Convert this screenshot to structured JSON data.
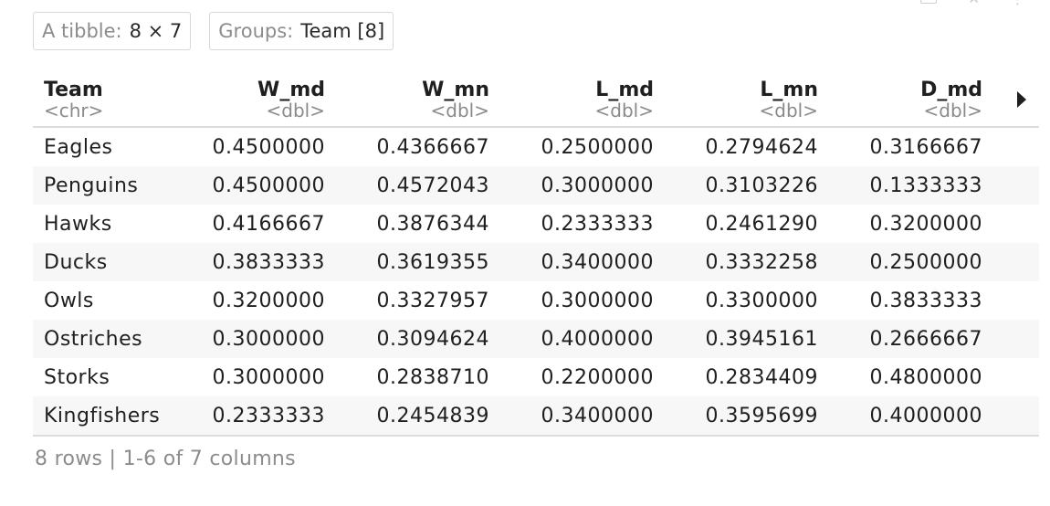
{
  "badges": {
    "tibble_key": "A tibble:",
    "tibble_value": "8 × 7",
    "groups_key": "Groups:",
    "groups_value": "Team [8]"
  },
  "columns": [
    {
      "name": "Team",
      "type": "<chr>"
    },
    {
      "name": "W_md",
      "type": "<dbl>"
    },
    {
      "name": "W_mn",
      "type": "<dbl>"
    },
    {
      "name": "L_md",
      "type": "<dbl>"
    },
    {
      "name": "L_mn",
      "type": "<dbl>"
    },
    {
      "name": "D_md",
      "type": "<dbl>"
    }
  ],
  "rows": [
    [
      "Eagles",
      "0.4500000",
      "0.4366667",
      "0.2500000",
      "0.2794624",
      "0.3166667"
    ],
    [
      "Penguins",
      "0.4500000",
      "0.4572043",
      "0.3000000",
      "0.3103226",
      "0.1333333"
    ],
    [
      "Hawks",
      "0.4166667",
      "0.3876344",
      "0.2333333",
      "0.2461290",
      "0.3200000"
    ],
    [
      "Ducks",
      "0.3833333",
      "0.3619355",
      "0.3400000",
      "0.3332258",
      "0.2500000"
    ],
    [
      "Owls",
      "0.3200000",
      "0.3327957",
      "0.3000000",
      "0.3300000",
      "0.3833333"
    ],
    [
      "Ostriches",
      "0.3000000",
      "0.3094624",
      "0.4000000",
      "0.3945161",
      "0.2666667"
    ],
    [
      "Storks",
      "0.3000000",
      "0.2838710",
      "0.2200000",
      "0.2834409",
      "0.4800000"
    ],
    [
      "Kingfishers",
      "0.2333333",
      "0.2454839",
      "0.3400000",
      "0.3595699",
      "0.4000000"
    ]
  ],
  "footer": "8 rows | 1-6 of 7 columns",
  "icons": {
    "next_columns": "next-columns-arrow-icon",
    "export": "export-icon",
    "close": "close-icon",
    "more": "more-icon"
  }
}
